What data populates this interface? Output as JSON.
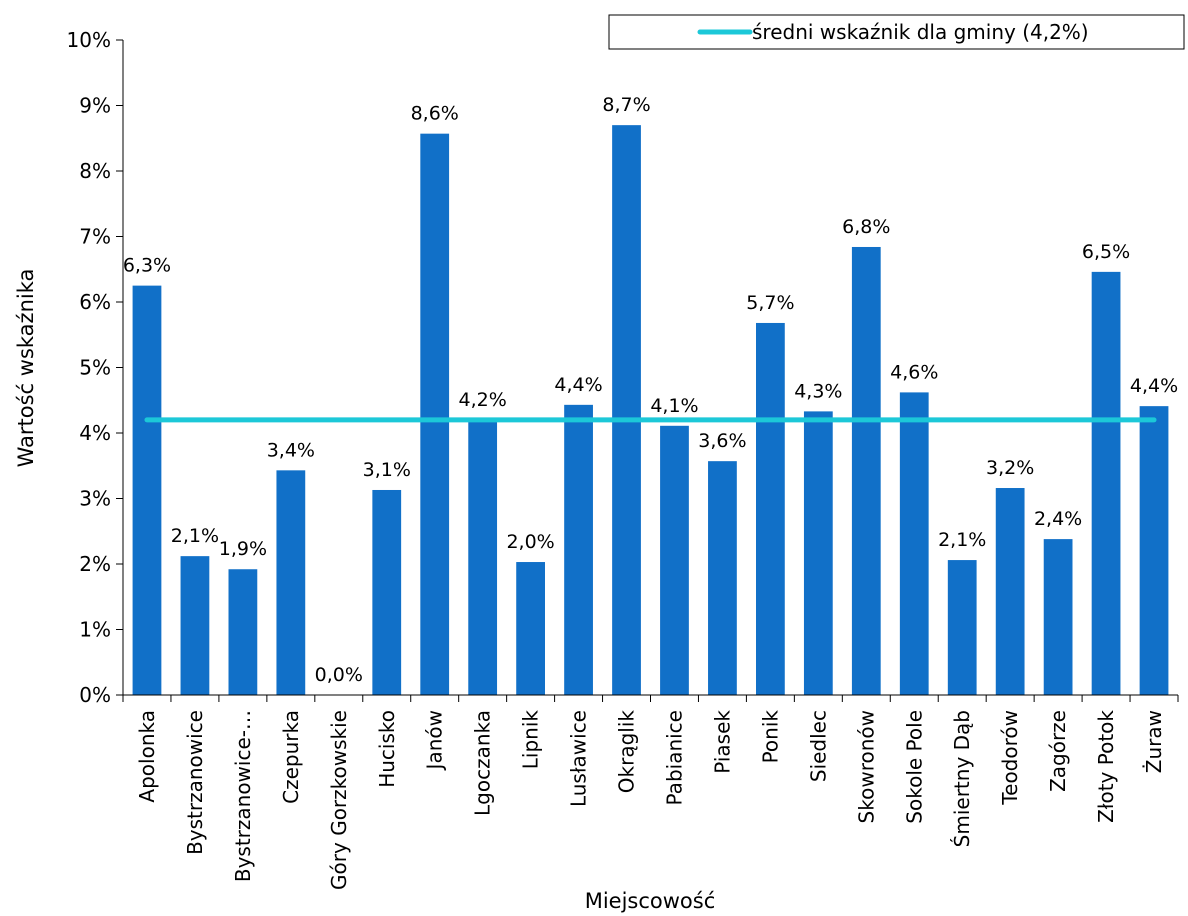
{
  "chart_data": {
    "type": "bar",
    "xlabel": "Miejscowość",
    "ylabel": "Wartość wskaźnika",
    "ylim": [
      0,
      10
    ],
    "ytick_step": 1,
    "ytick_labels": [
      "0%",
      "1%",
      "2%",
      "3%",
      "4%",
      "5%",
      "6%",
      "7%",
      "8%",
      "9%",
      "10%"
    ],
    "grid": false,
    "legend_position": "top-right",
    "bar_color": "#1170C8",
    "categories": [
      "Apolonka",
      "Bystrzanowice",
      "Bystrzanowice-…",
      "Czepurka",
      "Góry Gorzkowskie",
      "Hucisko",
      "Janów",
      "Lgoczanka",
      "Lipnik",
      "Lusławice",
      "Okrąglik",
      "Pabianice",
      "Piasek",
      "Ponik",
      "Siedlec",
      "Skowronów",
      "Sokole Pole",
      "Śmiertny Dąb",
      "Teodorów",
      "Zagórze",
      "Złoty Potok",
      "Żuraw"
    ],
    "values": [
      6.25,
      2.12,
      1.92,
      3.43,
      0.0,
      3.13,
      8.57,
      4.2,
      2.03,
      4.43,
      8.7,
      4.11,
      3.57,
      5.68,
      4.33,
      6.84,
      4.62,
      2.06,
      3.16,
      2.38,
      6.46,
      4.41
    ],
    "value_labels": [
      "6,3%",
      "2,1%",
      "1,9%",
      "3,4%",
      "0,0%",
      "3,1%",
      "8,6%",
      "4,2%",
      "2,0%",
      "4,4%",
      "8,7%",
      "4,1%",
      "3,6%",
      "5,7%",
      "4,3%",
      "6,8%",
      "4,6%",
      "2,1%",
      "3,2%",
      "2,4%",
      "6,5%",
      "4,4%"
    ],
    "average_line": {
      "name": "średni wskaźnik dla gminy (4,2%)",
      "value": 4.2,
      "color": "#1CC8D8"
    }
  }
}
